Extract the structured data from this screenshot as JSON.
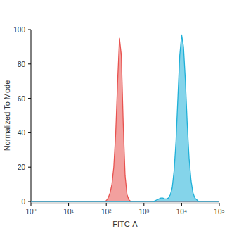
{
  "chart_data": {
    "type": "area",
    "x_label": "FITC-A",
    "y_label": "Normalized To Mode",
    "log": "x",
    "xlim": [
      1,
      100000
    ],
    "xticks": [
      {
        "value": 1,
        "label": "10⁰"
      },
      {
        "value": 10,
        "label": "10¹"
      },
      {
        "value": 100,
        "label": "10²"
      },
      {
        "value": 1000,
        "label": "10³"
      },
      {
        "value": 10000,
        "label": "10⁴"
      },
      {
        "value": 100000,
        "label": "10⁵"
      }
    ],
    "ylim": [
      0,
      100
    ],
    "yticks": [
      0,
      20,
      40,
      60,
      80,
      100
    ],
    "x": [
      1,
      79.4,
      89.1,
      100,
      112,
      126,
      141,
      158,
      178,
      200,
      224,
      251,
      282,
      316,
      355,
      398,
      447,
      501,
      562,
      631,
      708,
      794,
      891,
      1000,
      1120,
      1260,
      1410,
      1580,
      1780,
      2000,
      2240,
      2510,
      2820,
      3160,
      3550,
      3980,
      4470,
      5010,
      5620,
      6310,
      7080,
      7940,
      8910,
      10000,
      11200,
      12600,
      14100,
      15800,
      17800,
      20000,
      22400,
      25100,
      28200,
      31600,
      100000
    ],
    "series": [
      {
        "color": "#e8524f",
        "values": [
          0,
          0,
          0,
          0.5,
          2,
          5,
          10,
          20,
          40,
          70,
          95,
          85,
          45,
          15,
          4,
          1,
          0,
          0,
          0,
          0,
          0,
          0,
          0,
          0,
          0,
          0,
          0,
          0,
          0,
          0,
          0,
          0,
          0,
          0,
          0,
          0,
          0,
          0,
          0,
          0,
          0,
          0,
          0,
          0,
          0,
          0,
          0,
          0,
          0,
          0,
          0,
          0,
          0,
          0,
          0
        ]
      },
      {
        "color": "#1fb0d8",
        "values": [
          0,
          0,
          0,
          0,
          0,
          0,
          0,
          0,
          0,
          0,
          0,
          0,
          0,
          0,
          0,
          0,
          0,
          0,
          0,
          0,
          0,
          0,
          0,
          0,
          0,
          0,
          0,
          0,
          0,
          0.5,
          1,
          1.5,
          2,
          2,
          1.5,
          1.5,
          2,
          4,
          8,
          18,
          35,
          60,
          85,
          97,
          90,
          70,
          45,
          25,
          12,
          5,
          2,
          1,
          0,
          0,
          0
        ]
      }
    ]
  }
}
